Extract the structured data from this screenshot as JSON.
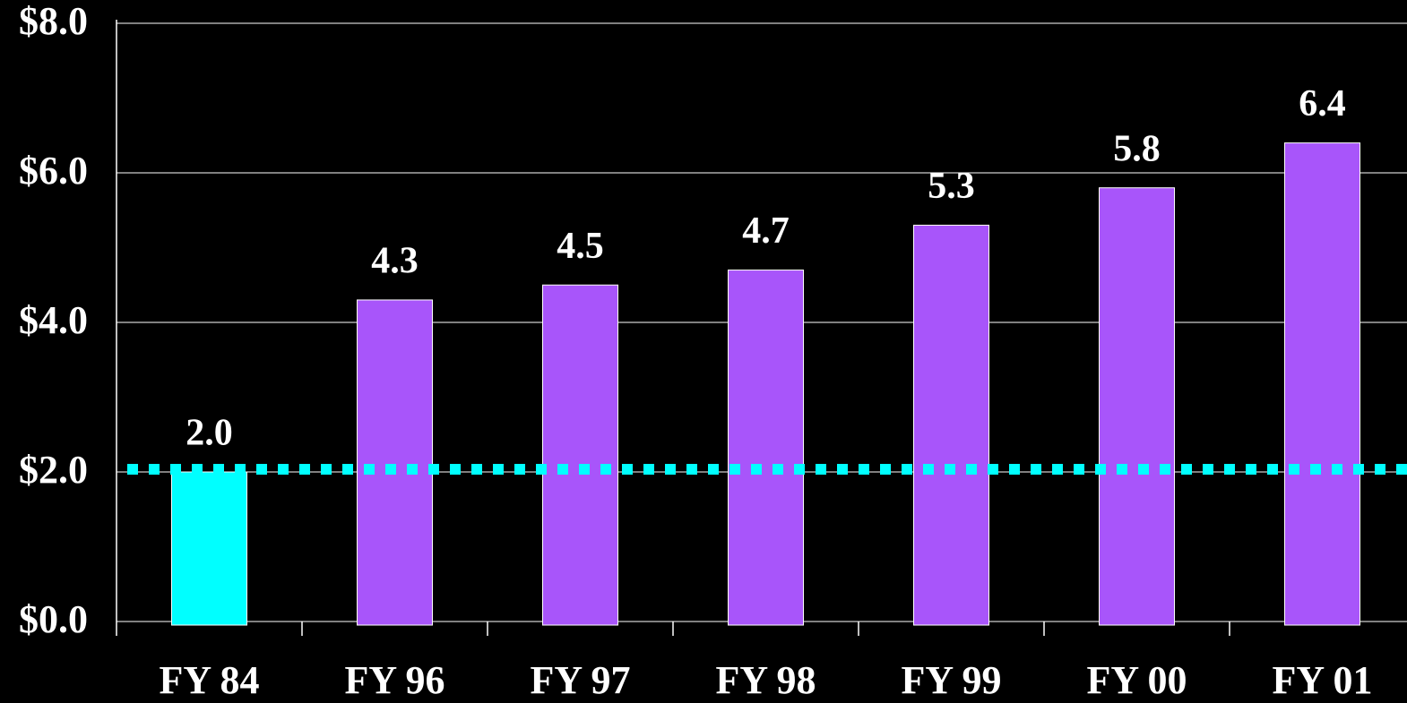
{
  "chart_data": {
    "type": "bar",
    "categories": [
      "FY 84",
      "FY 96",
      "FY 97",
      "FY 98",
      "FY 99",
      "FY 00",
      "FY 01"
    ],
    "values": [
      2.0,
      4.3,
      4.5,
      4.7,
      5.3,
      5.8,
      6.4
    ],
    "value_labels": [
      "2.0",
      "4.3",
      "4.5",
      "4.7",
      "5.3",
      "5.8",
      "6.4"
    ],
    "colors": [
      "#00ffff",
      "#a855fa",
      "#a855fa",
      "#a855fa",
      "#a855fa",
      "#a855fa",
      "#a855fa"
    ],
    "ylim": [
      0,
      8
    ],
    "yticks": [
      {
        "value": 0,
        "label": "$0.0"
      },
      {
        "value": 2,
        "label": "$2.0"
      },
      {
        "value": 4,
        "label": "$4.0"
      },
      {
        "value": 6,
        "label": "$6.0"
      },
      {
        "value": 8,
        "label": "$8.0"
      }
    ],
    "grid": true,
    "reference_line": {
      "value": 2,
      "color": "#00ffff"
    }
  }
}
